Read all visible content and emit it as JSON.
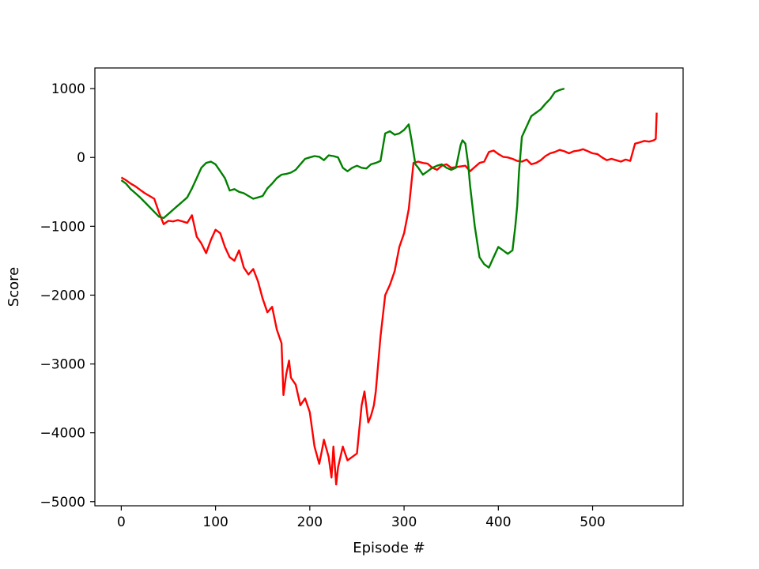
{
  "chart_data": {
    "type": "line",
    "title": "",
    "xlabel": "Episode #",
    "ylabel": "Score",
    "xlim": [
      -28,
      596
    ],
    "ylim": [
      -5060,
      1300
    ],
    "xticks": [
      0,
      100,
      200,
      300,
      400,
      500
    ],
    "yticks": [
      1000,
      0,
      -1000,
      -2000,
      -3000,
      -4000,
      -5000
    ],
    "xtick_labels": [
      "0",
      "100",
      "200",
      "300",
      "400",
      "500"
    ],
    "ytick_labels": [
      "1000",
      "0",
      "−1000",
      "−2000",
      "−3000",
      "−4000",
      "−5000"
    ],
    "grid": false,
    "legend": "none",
    "series": [
      {
        "color": "#ff0000",
        "x": [
          0,
          5,
          10,
          15,
          20,
          25,
          30,
          35,
          40,
          45,
          50,
          55,
          60,
          65,
          70,
          75,
          80,
          85,
          90,
          95,
          100,
          105,
          110,
          115,
          120,
          125,
          130,
          135,
          140,
          145,
          150,
          155,
          160,
          165,
          170,
          172,
          175,
          178,
          180,
          185,
          190,
          195,
          200,
          205,
          210,
          213,
          215,
          220,
          223,
          225,
          228,
          230,
          235,
          240,
          245,
          250,
          255,
          258,
          262,
          265,
          268,
          270,
          275,
          280,
          285,
          290,
          295,
          300,
          305,
          310,
          315,
          320,
          325,
          330,
          335,
          340,
          345,
          350,
          355,
          360,
          365,
          370,
          375,
          380,
          385,
          390,
          395,
          400,
          405,
          410,
          415,
          420,
          425,
          430,
          435,
          440,
          445,
          450,
          455,
          460,
          465,
          470,
          475,
          480,
          485,
          490,
          495,
          500,
          505,
          510,
          515,
          520,
          525,
          530,
          535,
          540,
          545,
          550,
          555,
          560,
          565,
          567,
          568
        ],
        "y": [
          -290,
          -330,
          -380,
          -420,
          -470,
          -520,
          -560,
          -600,
          -800,
          -970,
          -920,
          -930,
          -910,
          -930,
          -950,
          -840,
          -1150,
          -1250,
          -1390,
          -1200,
          -1050,
          -1100,
          -1300,
          -1450,
          -1500,
          -1350,
          -1600,
          -1700,
          -1620,
          -1800,
          -2050,
          -2250,
          -2170,
          -2500,
          -2700,
          -3450,
          -3150,
          -2950,
          -3200,
          -3300,
          -3600,
          -3500,
          -3700,
          -4200,
          -4450,
          -4250,
          -4100,
          -4350,
          -4650,
          -4200,
          -4750,
          -4500,
          -4200,
          -4400,
          -4350,
          -4300,
          -3600,
          -3400,
          -3850,
          -3750,
          -3600,
          -3400,
          -2600,
          -2000,
          -1850,
          -1650,
          -1300,
          -1100,
          -750,
          -80,
          -60,
          -80,
          -90,
          -150,
          -180,
          -120,
          -100,
          -150,
          -140,
          -130,
          -120,
          -200,
          -140,
          -80,
          -60,
          80,
          100,
          50,
          10,
          0,
          -20,
          -50,
          -60,
          -30,
          -100,
          -80,
          -40,
          20,
          60,
          80,
          110,
          90,
          60,
          90,
          100,
          120,
          90,
          60,
          50,
          0,
          -40,
          -20,
          -40,
          -60,
          -30,
          -50,
          200,
          220,
          240,
          230,
          250,
          270,
          650
        ]
      },
      {
        "color": "#008000",
        "x": [
          0,
          5,
          10,
          15,
          20,
          25,
          30,
          35,
          40,
          45,
          50,
          55,
          60,
          65,
          70,
          75,
          80,
          85,
          90,
          95,
          100,
          105,
          110,
          115,
          120,
          125,
          130,
          135,
          140,
          145,
          150,
          155,
          160,
          165,
          170,
          175,
          180,
          185,
          190,
          195,
          200,
          205,
          210,
          215,
          220,
          225,
          230,
          235,
          240,
          245,
          250,
          255,
          260,
          265,
          270,
          275,
          280,
          285,
          290,
          295,
          300,
          305,
          308,
          312,
          315,
          320,
          325,
          330,
          335,
          340,
          345,
          350,
          355,
          360,
          362,
          365,
          368,
          370,
          375,
          380,
          385,
          390,
          395,
          400,
          405,
          410,
          415,
          418,
          420,
          422,
          425,
          430,
          435,
          440,
          445,
          450,
          455,
          460,
          465,
          470
        ],
        "y": [
          -330,
          -380,
          -460,
          -520,
          -580,
          -650,
          -720,
          -790,
          -860,
          -880,
          -820,
          -760,
          -700,
          -640,
          -580,
          -450,
          -300,
          -150,
          -80,
          -60,
          -100,
          -200,
          -300,
          -480,
          -460,
          -500,
          -520,
          -560,
          -600,
          -580,
          -560,
          -450,
          -380,
          -300,
          -250,
          -240,
          -220,
          -180,
          -100,
          -20,
          0,
          20,
          10,
          -40,
          30,
          20,
          0,
          -150,
          -200,
          -150,
          -120,
          -150,
          -160,
          -100,
          -80,
          -50,
          350,
          380,
          330,
          350,
          400,
          480,
          250,
          -100,
          -150,
          -250,
          -200,
          -150,
          -120,
          -100,
          -150,
          -180,
          -150,
          180,
          250,
          200,
          -100,
          -400,
          -1000,
          -1450,
          -1550,
          -1600,
          -1450,
          -1300,
          -1350,
          -1400,
          -1350,
          -1000,
          -700,
          -200,
          300,
          450,
          600,
          650,
          700,
          780,
          850,
          950,
          980,
          1000
        ]
      }
    ]
  }
}
